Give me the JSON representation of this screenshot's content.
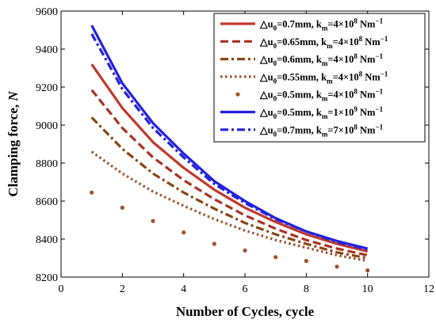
{
  "chart_data": {
    "type": "line",
    "xlabel": "Number of Cycles, cycle",
    "ylabel": "Clamping force, ",
    "ylabel_var": "N",
    "xlim": [
      0,
      12
    ],
    "ylim": [
      8200,
      9600
    ],
    "xticks": [
      "0",
      "2",
      "4",
      "6",
      "8",
      "10",
      "12"
    ],
    "yticks": [
      "8200",
      "8400",
      "8600",
      "8800",
      "9000",
      "9200",
      "9400",
      "9600"
    ],
    "grid": false,
    "legend_position": "top-right",
    "x": [
      1,
      2,
      3,
      4,
      5,
      6,
      7,
      8,
      9,
      10
    ],
    "series": [
      {
        "label": {
          "du": "0.7mm",
          "k": "4×10",
          "exp": "8",
          "unit": " Nm",
          "unit_exp": "−1"
        },
        "style": "solid",
        "color": "#c0392b",
        "values": [
          9320,
          9090,
          8910,
          8775,
          8660,
          8565,
          8490,
          8425,
          8375,
          8335
        ]
      },
      {
        "label": {
          "du": "0.65mm",
          "k": "4×10",
          "exp": "8",
          "unit": " Nm",
          "unit_exp": "−1"
        },
        "style": "dashed",
        "color": "#a93226",
        "values": [
          9185,
          8985,
          8830,
          8710,
          8610,
          8525,
          8455,
          8395,
          8350,
          8315
        ]
      },
      {
        "label": {
          "du": "0.6mm",
          "k": "4×10",
          "exp": "8",
          "unit": " Nm",
          "unit_exp": "−1"
        },
        "style": "dashdot",
        "color": "#8b4513",
        "values": [
          9040,
          8875,
          8745,
          8645,
          8560,
          8485,
          8425,
          8375,
          8330,
          8300
        ]
      },
      {
        "label": {
          "du": "0.55mm",
          "k": "4×10",
          "exp": "8",
          "unit": " Nm",
          "unit_exp": "−1"
        },
        "style": "dotted",
        "color": "#a0522d",
        "values": [
          8860,
          8745,
          8650,
          8575,
          8505,
          8445,
          8395,
          8355,
          8315,
          8285
        ]
      },
      {
        "label": {
          "du": "0.5mm",
          "k": "4×10",
          "exp": "8",
          "unit": " Nm",
          "unit_exp": "−1"
        },
        "style": "points",
        "color": "#a0522d",
        "values": [
          8645,
          8565,
          8495,
          8435,
          8375,
          8340,
          8305,
          8285,
          8255,
          8235
        ]
      },
      {
        "label": {
          "du": "0.5mm",
          "k": "1×10",
          "exp": "9",
          "unit": " Nm",
          "unit_exp": "−1"
        },
        "style": "solid",
        "color": "#2222dd",
        "values": [
          9525,
          9220,
          9010,
          8850,
          8705,
          8600,
          8510,
          8440,
          8390,
          8350
        ]
      },
      {
        "label": {
          "du": "0.7mm",
          "k": "7×10",
          "exp": "8",
          "unit": " Nm",
          "unit_exp": "−1"
        },
        "style": "dashdot",
        "color": "#2222dd",
        "values": [
          9480,
          9190,
          8985,
          8830,
          8690,
          8590,
          8505,
          8440,
          8385,
          8345
        ]
      }
    ]
  }
}
